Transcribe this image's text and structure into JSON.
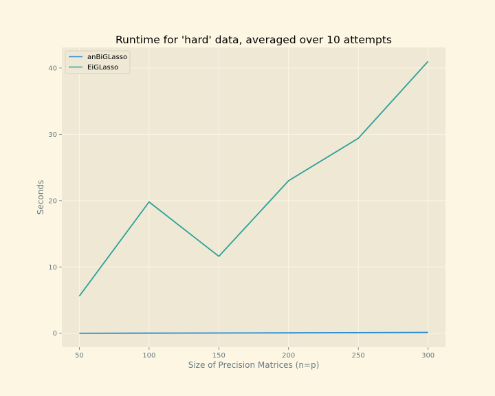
{
  "chart_data": {
    "type": "line",
    "title": "Runtime for 'hard' data, averaged over 10 attempts",
    "xlabel": "Size of Precision Matrices (n=p)",
    "ylabel": "Seconds",
    "x": [
      50,
      100,
      150,
      200,
      250,
      300
    ],
    "xlim": [
      37.5,
      312.5
    ],
    "ylim": [
      -2.1,
      43.1
    ],
    "xticks": [
      50,
      100,
      150,
      200,
      250,
      300
    ],
    "yticks": [
      0,
      10,
      20,
      30,
      40
    ],
    "grid": true,
    "legend_position": "top-left",
    "series": [
      {
        "name": "anBiGLasso",
        "color": "#268bd2",
        "values": [
          0.0,
          0.02,
          0.04,
          0.06,
          0.09,
          0.12
        ]
      },
      {
        "name": "EiGLasso",
        "color": "#2aa198",
        "values": [
          5.6,
          19.8,
          11.6,
          23.0,
          29.4,
          41.0
        ]
      }
    ],
    "colors": {
      "figure_bg": "#fdf6e3",
      "axes_bg": "#eee8d5",
      "grid": "#fdf6e3",
      "text": "#657b83"
    }
  }
}
